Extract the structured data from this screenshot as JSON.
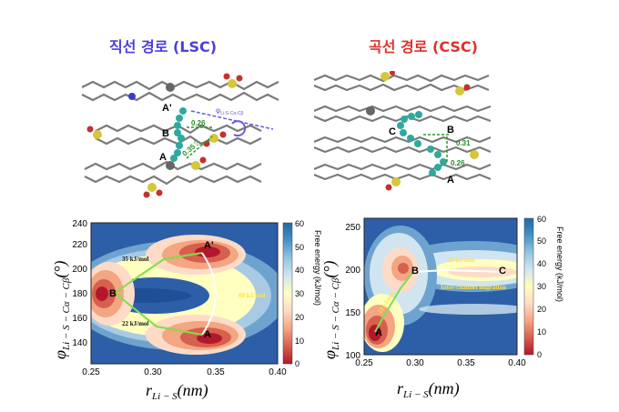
{
  "colors": {
    "left_title": "#4a3fe0",
    "right_title": "#e0302a",
    "path_green": "#7ee04a",
    "path_white": "#ffffff",
    "label_yellow": "#ffe14a",
    "cbar": [
      "#b2182b",
      "#d6604d",
      "#f4a582",
      "#fddbc7",
      "#ffffbf",
      "#d1e5f0",
      "#92c5de",
      "#4393c3",
      "#2166ac"
    ]
  },
  "left": {
    "title": "직선 경로 (LSC)",
    "molecule": {
      "labels": {
        "a_prime": "A'",
        "b": "B",
        "a": "A"
      },
      "dist1": "0.26",
      "dist2": "0.35",
      "r_label": "r",
      "r_sub": "Li-S",
      "phi_label": "φ",
      "phi_sub": "Li-S-Cα-Cβ"
    },
    "plot": {
      "points": {
        "a_prime": "A'",
        "b": "B",
        "a": "A"
      },
      "energy_top": "35 kJ/mol",
      "energy_right": "60 kJ/mol",
      "energy_bottom": "22 kJ/mol"
    }
  },
  "right": {
    "title": "곡선 경로 (CSC)",
    "molecule": {
      "labels": {
        "c": "C",
        "b": "B",
        "a": "A"
      },
      "dist1": "0.31",
      "dist2": "0.26"
    },
    "plot": {
      "points": {
        "a": "A",
        "b": "B",
        "c": "C"
      },
      "energy_bc": "33 kJ/mol",
      "energy_ab": "23 kJ/mol",
      "migration": "Inter-channel migration"
    }
  },
  "axes": {
    "y_main": "φ",
    "y_sub": "Li − S − Cα − Cβ",
    "y_unit": "(°)",
    "x_main": "r",
    "x_sub": "Li − S",
    "x_unit": "(nm)",
    "cbar_label": "Free energy (kJ/mol)"
  },
  "chart_data": [
    {
      "type": "heatmap",
      "title": "직선 경로 (LSC)",
      "xlabel": "r Li-S (nm)",
      "ylabel": "φ Li-S-Cα-Cβ (°)",
      "xlim": [
        0.25,
        0.4
      ],
      "ylim": [
        125,
        240
      ],
      "xticks": [
        "0.25",
        "0.30",
        "0.35",
        "0.40"
      ],
      "yticks": [
        "140",
        "160",
        "180",
        "200",
        "220",
        "240"
      ],
      "colorbar": {
        "label": "Free energy (kJ/mol)",
        "range": [
          0,
          60
        ],
        "ticks": [
          "0",
          "10",
          "20",
          "30",
          "40",
          "50",
          "60"
        ]
      },
      "minima": [
        {
          "label": "A'",
          "x": 0.355,
          "y": 216
        },
        {
          "label": "B",
          "x": 0.266,
          "y": 180
        },
        {
          "label": "A",
          "x": 0.355,
          "y": 146
        }
      ],
      "annotations": [
        "35 kJ/mol",
        "60 kJ/mol",
        "22 kJ/mol"
      ]
    },
    {
      "type": "heatmap",
      "title": "곡선 경로 (CSC)",
      "xlabel": "r Li-S (nm)",
      "ylabel": "φ Li-S-Cα-Cβ (°)",
      "xlim": [
        0.25,
        0.4
      ],
      "ylim": [
        100,
        260
      ],
      "xticks": [
        "0.25",
        "0.30",
        "0.35",
        "0.40"
      ],
      "yticks": [
        "100",
        "150",
        "200",
        "250"
      ],
      "colorbar": {
        "label": "Free energy (kJ/mol)",
        "range": [
          0,
          60
        ],
        "ticks": [
          "0",
          "10",
          "20",
          "30",
          "40",
          "50",
          "60"
        ]
      },
      "minima": [
        {
          "label": "A",
          "x": 0.262,
          "y": 125
        },
        {
          "label": "B",
          "x": 0.295,
          "y": 198
        },
        {
          "label": "C",
          "x": 0.383,
          "y": 198
        }
      ],
      "annotations": [
        "33 kJ/mol",
        "23 kJ/mol",
        "Inter-channel migration"
      ]
    }
  ]
}
